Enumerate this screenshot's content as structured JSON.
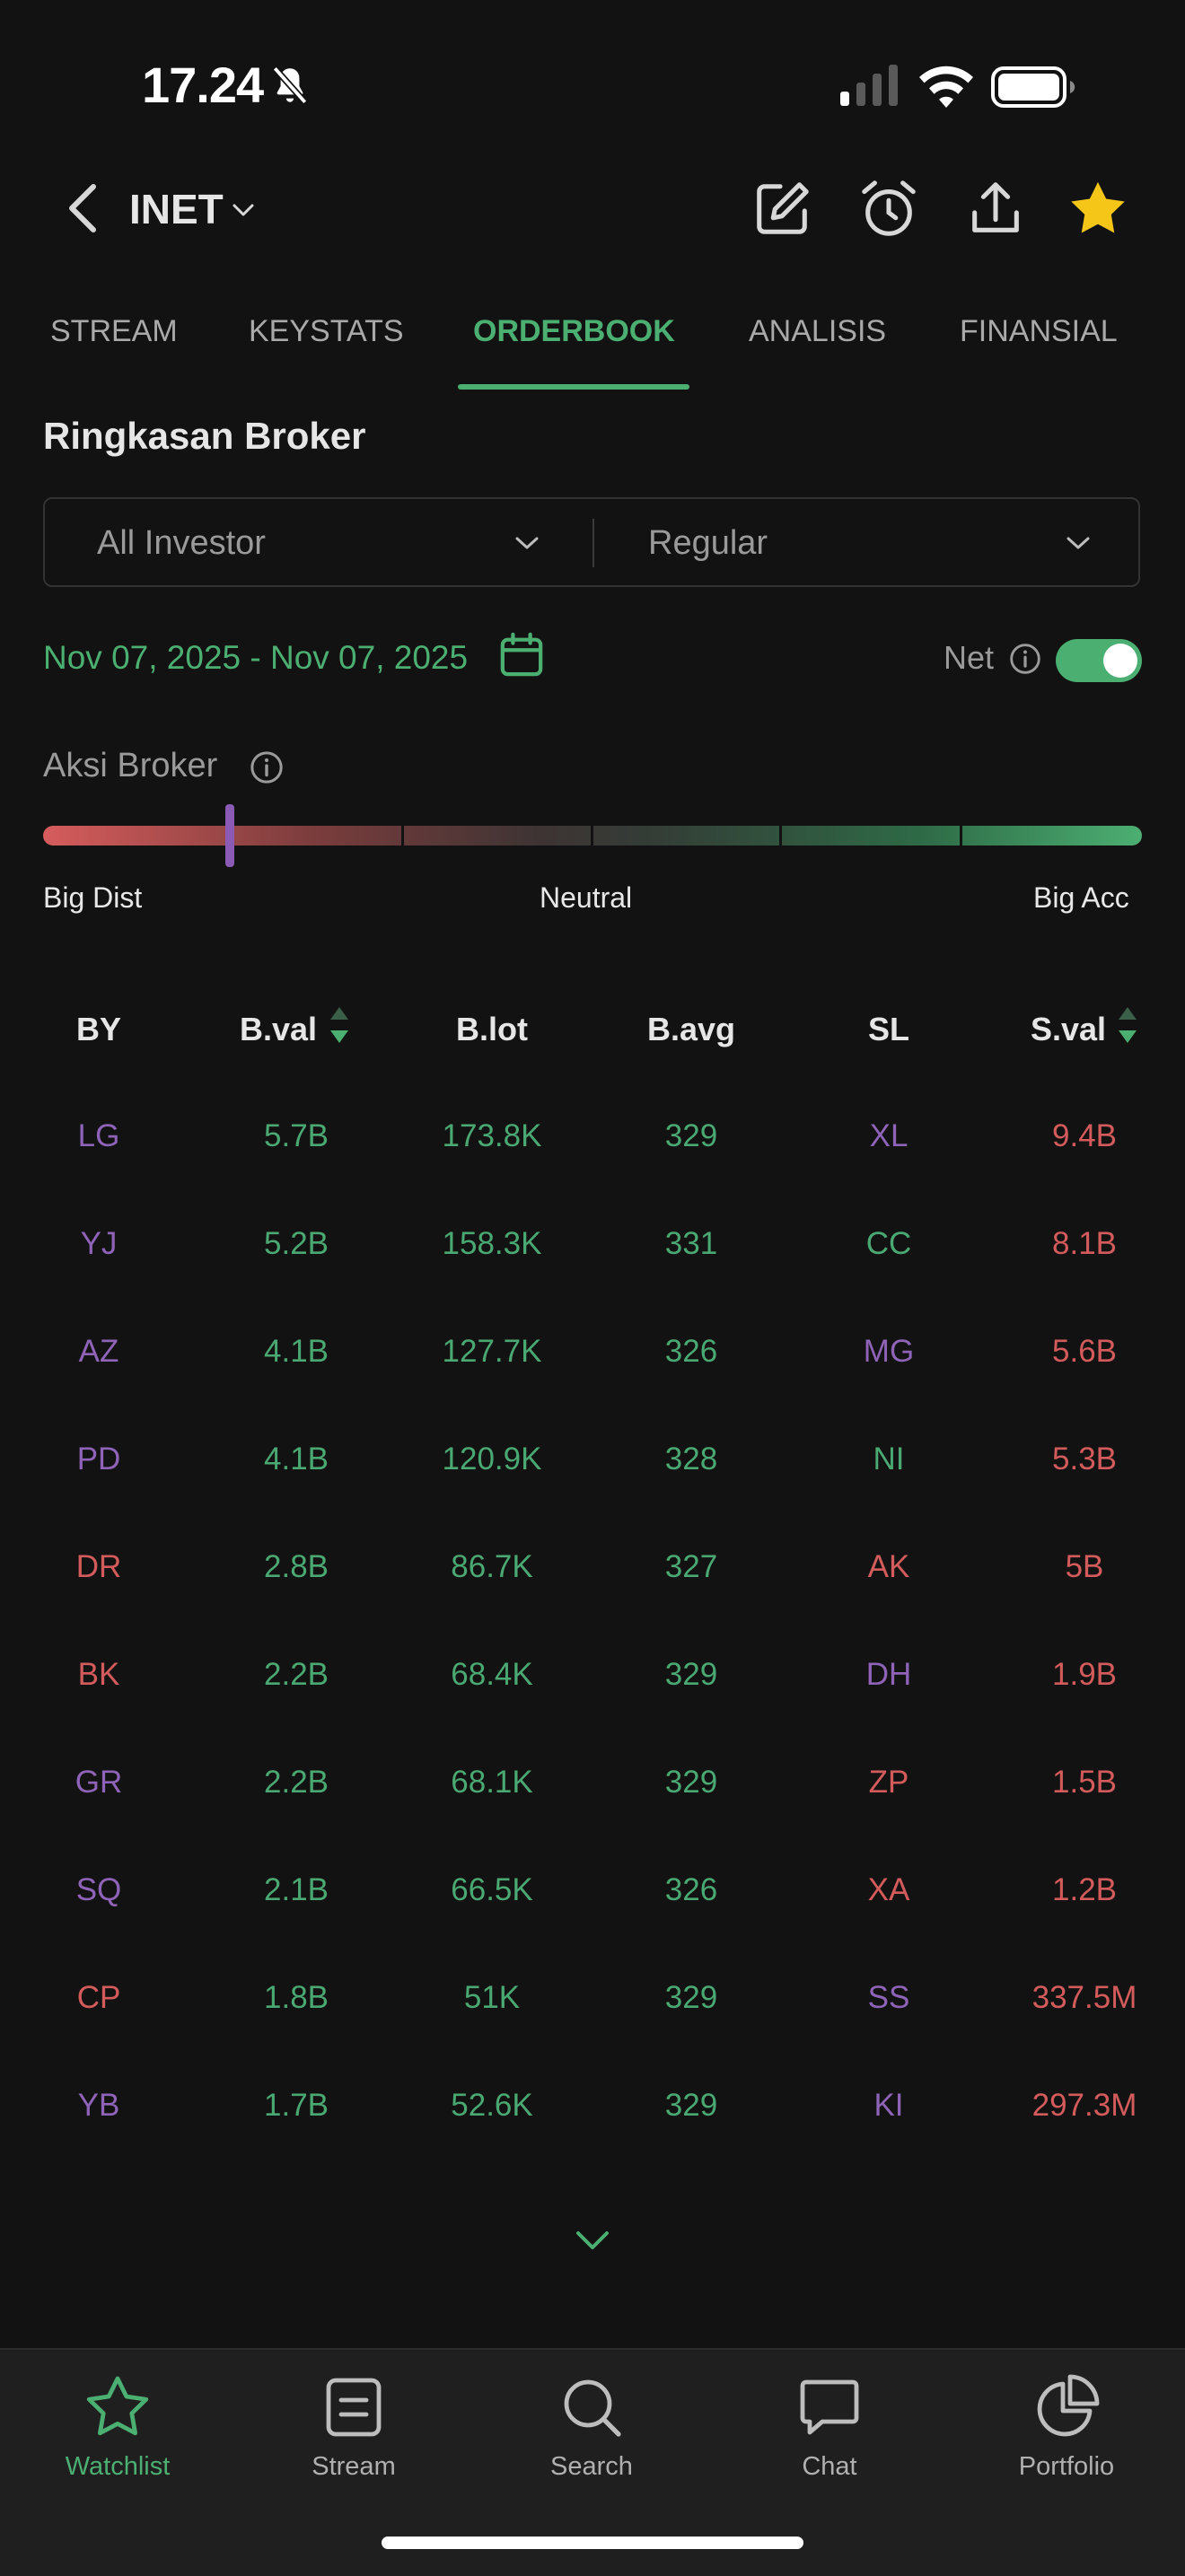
{
  "status_bar": {
    "time": "17.24"
  },
  "header": {
    "ticker": "INET"
  },
  "tabs": [
    {
      "label": "STREAM"
    },
    {
      "label": "KEYSTATS"
    },
    {
      "label": "ORDERBOOK"
    },
    {
      "label": "ANALISIS"
    },
    {
      "label": "FINANSIAL"
    }
  ],
  "active_tab": "ORDERBOOK",
  "section_title": "Ringkasan Broker",
  "filters": {
    "investor": "All Investor",
    "market": "Regular"
  },
  "date_range": "Nov 07, 2025 - Nov 07, 2025",
  "net": {
    "label": "Net",
    "enabled": true
  },
  "aksi_broker": {
    "label": "Aksi Broker",
    "left": "Big Dist",
    "middle": "Neutral",
    "right": "Big Acc",
    "level_fraction": 0.17
  },
  "table": {
    "headers": {
      "by": "BY",
      "bval": "B.val",
      "blot": "B.lot",
      "bavg": "B.avg",
      "sl": "SL",
      "sval": "S.val"
    },
    "rows": [
      {
        "by": "LG",
        "by_color": "purple",
        "bval": "5.7B",
        "blot": "173.8K",
        "bavg": "329",
        "sl": "XL",
        "sl_color": "purple",
        "sval": "9.4B"
      },
      {
        "by": "YJ",
        "by_color": "purple",
        "bval": "5.2B",
        "blot": "158.3K",
        "bavg": "331",
        "sl": "CC",
        "sl_color": "green",
        "sval": "8.1B"
      },
      {
        "by": "AZ",
        "by_color": "purple",
        "bval": "4.1B",
        "blot": "127.7K",
        "bavg": "326",
        "sl": "MG",
        "sl_color": "purple",
        "sval": "5.6B"
      },
      {
        "by": "PD",
        "by_color": "purple",
        "bval": "4.1B",
        "blot": "120.9K",
        "bavg": "328",
        "sl": "NI",
        "sl_color": "green",
        "sval": "5.3B"
      },
      {
        "by": "DR",
        "by_color": "red",
        "bval": "2.8B",
        "blot": "86.7K",
        "bavg": "327",
        "sl": "AK",
        "sl_color": "red",
        "sval": "5B"
      },
      {
        "by": "BK",
        "by_color": "red",
        "bval": "2.2B",
        "blot": "68.4K",
        "bavg": "329",
        "sl": "DH",
        "sl_color": "purple",
        "sval": "1.9B"
      },
      {
        "by": "GR",
        "by_color": "purple",
        "bval": "2.2B",
        "blot": "68.1K",
        "bavg": "329",
        "sl": "ZP",
        "sl_color": "red",
        "sval": "1.5B"
      },
      {
        "by": "SQ",
        "by_color": "purple",
        "bval": "2.1B",
        "blot": "66.5K",
        "bavg": "326",
        "sl": "XA",
        "sl_color": "red",
        "sval": "1.2B"
      },
      {
        "by": "CP",
        "by_color": "red",
        "bval": "1.8B",
        "blot": "51K",
        "bavg": "329",
        "sl": "SS",
        "sl_color": "purple",
        "sval": "337.5M"
      },
      {
        "by": "YB",
        "by_color": "purple",
        "bval": "1.7B",
        "blot": "52.6K",
        "bavg": "329",
        "sl": "KI",
        "sl_color": "purple",
        "sval": "297.3M"
      }
    ]
  },
  "bottom_nav": [
    {
      "label": "Watchlist",
      "icon": "star-outline-icon",
      "active": true
    },
    {
      "label": "Stream",
      "icon": "document-icon",
      "active": false
    },
    {
      "label": "Search",
      "icon": "search-icon",
      "active": false
    },
    {
      "label": "Chat",
      "icon": "chat-icon",
      "active": false
    },
    {
      "label": "Portfolio",
      "icon": "pie-chart-icon",
      "active": false
    }
  ],
  "colors": {
    "accent_green": "#4caf72",
    "purple": "#8e63b8",
    "red": "#d45b5b",
    "background": "#121212",
    "star": "#f5c518"
  }
}
